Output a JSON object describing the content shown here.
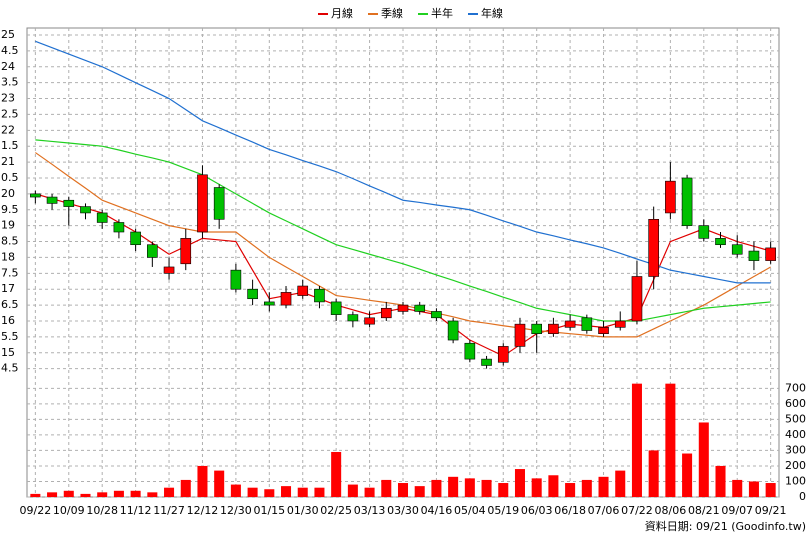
{
  "chart_data": {
    "type": "candlestick",
    "categories": [
      "09/22",
      null,
      "10/09",
      null,
      "10/28",
      null,
      "11/12",
      null,
      "11/27",
      null,
      "12/12",
      null,
      "12/30",
      null,
      "01/15",
      null,
      "01/30",
      null,
      "02/25",
      null,
      "03/13",
      null,
      "03/30",
      null,
      "04/16",
      null,
      "05/04",
      null,
      "05/19",
      null,
      "06/03",
      null,
      "06/18",
      null,
      "07/06",
      null,
      "07/22",
      null,
      "08/06",
      null,
      "08/21",
      null,
      "09/07",
      null,
      "09/21"
    ],
    "open": [
      20.0,
      19.9,
      19.8,
      19.6,
      19.4,
      19.1,
      18.8,
      18.4,
      17.5,
      17.8,
      18.8,
      20.2,
      17.6,
      17.0,
      16.6,
      16.5,
      16.8,
      17.0,
      16.6,
      16.2,
      15.9,
      16.1,
      16.3,
      16.5,
      16.3,
      16.0,
      15.3,
      14.8,
      14.7,
      15.2,
      15.9,
      15.6,
      15.8,
      16.1,
      15.6,
      15.8,
      16.0,
      17.4,
      19.4,
      20.5,
      19.0,
      18.6,
      18.4,
      18.2,
      17.9
    ],
    "high": [
      20.1,
      20.0,
      19.9,
      19.7,
      19.5,
      19.2,
      18.9,
      18.5,
      18.0,
      18.9,
      20.9,
      20.3,
      17.8,
      17.3,
      16.9,
      17.1,
      17.3,
      17.1,
      16.7,
      16.3,
      16.3,
      16.6,
      16.6,
      16.6,
      16.4,
      16.1,
      15.4,
      14.9,
      15.3,
      16.1,
      16.0,
      16.1,
      16.2,
      16.2,
      16.0,
      16.3,
      17.9,
      19.6,
      21.0,
      20.6,
      19.2,
      18.8,
      18.7,
      18.5,
      18.5
    ],
    "low": [
      19.7,
      19.5,
      19.0,
      19.2,
      18.9,
      18.6,
      18.2,
      17.7,
      17.3,
      17.6,
      18.6,
      18.9,
      16.9,
      16.5,
      16.3,
      16.4,
      16.7,
      16.4,
      16.0,
      15.8,
      15.8,
      16.0,
      16.2,
      16.2,
      16.0,
      15.3,
      14.7,
      14.5,
      14.6,
      15.0,
      15.0,
      15.5,
      15.7,
      15.6,
      15.5,
      15.7,
      15.9,
      17.0,
      19.2,
      18.9,
      18.5,
      18.3,
      18.0,
      17.6,
      17.8
    ],
    "close": [
      19.9,
      19.7,
      19.6,
      19.4,
      19.1,
      18.8,
      18.4,
      18.0,
      17.7,
      18.6,
      20.6,
      19.2,
      17.0,
      16.7,
      16.5,
      16.9,
      17.1,
      16.6,
      16.2,
      16.0,
      16.1,
      16.4,
      16.5,
      16.3,
      16.1,
      15.4,
      14.8,
      14.6,
      15.2,
      15.9,
      15.6,
      15.9,
      16.0,
      15.7,
      15.8,
      16.0,
      17.4,
      19.2,
      20.4,
      19.0,
      18.6,
      18.4,
      18.1,
      17.9,
      18.3
    ],
    "up_color": "#ff0000",
    "down_color": "#00c000",
    "series": [
      {
        "name": "月線",
        "color": "#e00000",
        "values": [
          20.0,
          19.85,
          19.7,
          19.55,
          19.4,
          19.1,
          18.8,
          18.45,
          18.1,
          18.35,
          18.6,
          18.55,
          18.5,
          17.6,
          16.7,
          16.8,
          16.9,
          16.7,
          16.5,
          16.35,
          16.2,
          16.3,
          16.4,
          16.3,
          16.2,
          15.8,
          15.4,
          15.15,
          14.9,
          15.25,
          15.6,
          15.75,
          15.9,
          15.85,
          15.8,
          15.95,
          16.1,
          17.3,
          18.5,
          18.7,
          18.9,
          18.7,
          18.5,
          18.35,
          18.2
        ]
      },
      {
        "name": "季線",
        "color": "#e07020",
        "values": [
          21.3,
          20.93,
          20.55,
          20.18,
          19.8,
          19.6,
          19.4,
          19.2,
          19.0,
          18.9,
          18.8,
          18.8,
          18.8,
          18.4,
          18.0,
          17.7,
          17.4,
          17.1,
          16.8,
          16.73,
          16.65,
          16.58,
          16.5,
          16.38,
          16.25,
          16.13,
          16.0,
          15.93,
          15.85,
          15.78,
          15.7,
          15.65,
          15.6,
          15.55,
          15.5,
          15.5,
          15.5,
          15.75,
          16.0,
          16.25,
          16.5,
          16.8,
          17.1,
          17.4,
          17.7
        ]
      },
      {
        "name": "半年",
        "color": "#20d020",
        "values": [
          21.7,
          21.65,
          21.6,
          21.55,
          21.5,
          21.38,
          21.25,
          21.13,
          21.0,
          20.8,
          20.6,
          20.3,
          20.0,
          19.7,
          19.4,
          19.15,
          18.9,
          18.65,
          18.4,
          18.25,
          18.1,
          17.95,
          17.8,
          17.63,
          17.45,
          17.28,
          17.1,
          16.93,
          16.75,
          16.58,
          16.4,
          16.3,
          16.2,
          16.1,
          16.0,
          16.0,
          16.0,
          16.1,
          16.2,
          16.3,
          16.4,
          16.45,
          16.5,
          16.55,
          16.6
        ]
      },
      {
        "name": "年線",
        "color": "#2070d0",
        "values": [
          24.8,
          24.6,
          24.4,
          24.2,
          24.0,
          23.75,
          23.5,
          23.25,
          23.0,
          22.65,
          22.3,
          22.08,
          21.85,
          21.63,
          21.4,
          21.23,
          21.05,
          20.88,
          20.7,
          20.48,
          20.25,
          20.03,
          19.8,
          19.73,
          19.65,
          19.58,
          19.5,
          19.33,
          19.15,
          18.98,
          18.8,
          18.68,
          18.55,
          18.43,
          18.3,
          18.13,
          17.95,
          17.78,
          17.6,
          17.5,
          17.4,
          17.3,
          17.2,
          17.2,
          17.2
        ]
      }
    ],
    "ylim": [
      14.3,
      25.22
    ],
    "yticks": [
      25,
      {
        "value": 24.5,
        "label": "4.5"
      },
      24,
      {
        "value": 23.5,
        "label": "3.5"
      },
      23,
      {
        "value": 22.5,
        "label": "2.5"
      },
      22,
      {
        "value": 21.5,
        "label": "1.5"
      },
      21,
      {
        "value": 20.5,
        "label": "0.5"
      },
      20,
      {
        "value": 19.5,
        "label": "9.5"
      },
      19,
      {
        "value": 18.5,
        "label": "8.5"
      },
      18,
      {
        "value": 17.5,
        "label": "7.5"
      },
      17,
      {
        "value": 16.5,
        "label": "6.5"
      },
      16,
      {
        "value": 15.5,
        "label": "5.5"
      },
      15,
      {
        "value": 14.5,
        "label": "4.5"
      }
    ],
    "grid": true,
    "volume": {
      "color": "#ff0000",
      "values": [
        20,
        30,
        40,
        20,
        30,
        40,
        40,
        30,
        60,
        110,
        200,
        170,
        80,
        60,
        50,
        70,
        60,
        60,
        290,
        80,
        60,
        110,
        90,
        70,
        110,
        130,
        120,
        110,
        90,
        180,
        120,
        140,
        90,
        110,
        130,
        170,
        730,
        300,
        730,
        280,
        480,
        200,
        110,
        100,
        90
      ],
      "ylim": [
        0,
        760
      ],
      "yticks": [
        0,
        100,
        200,
        300,
        400,
        500,
        600,
        700
      ]
    },
    "source": "資料日期: 09/21 (Goodinfo.tw)"
  }
}
